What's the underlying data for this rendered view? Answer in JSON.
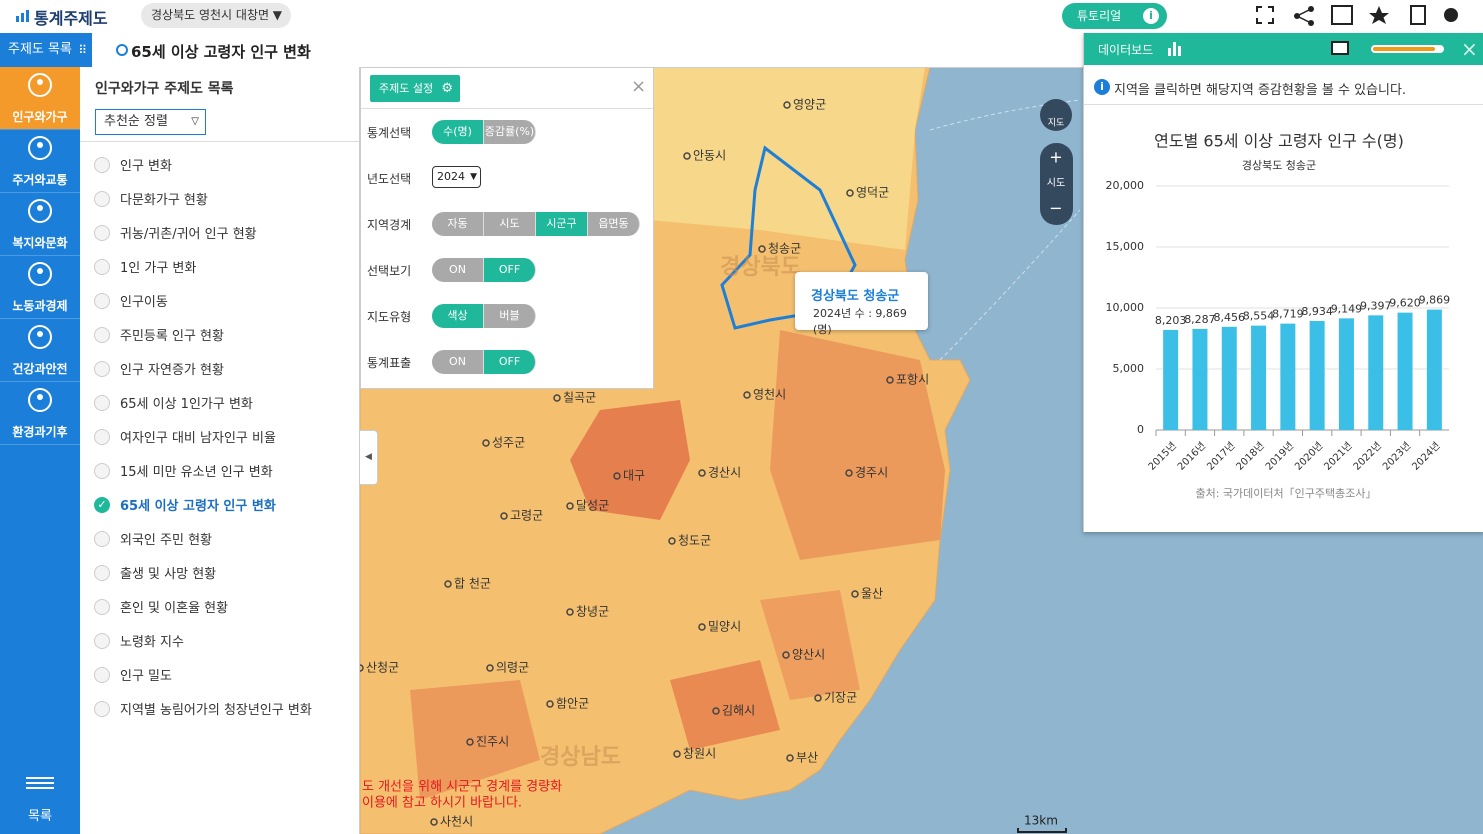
{
  "header": {
    "logo": "통계주제도",
    "location": "경상북도 영천시 대창면",
    "tutorial": "튜토리얼"
  },
  "toolbar": {
    "menu": "주제도 목록",
    "title": "65세 이상 고령자 인구 변화"
  },
  "sidebar": {
    "categories": [
      "인구와가구",
      "주거와교통",
      "복지와문화",
      "노동과경제",
      "건강과안전",
      "환경과기후"
    ],
    "active": 0,
    "menu": "목록"
  },
  "list": {
    "title": "인구와가구 주제도 목록",
    "sort": "추천순 정렬",
    "items": [
      "인구 변화",
      "다문화가구 현황",
      "귀농/귀촌/귀어 인구 현황",
      "1인 가구 변화",
      "인구이동",
      "주민등록 인구 현황",
      "인구 자연증가 현황",
      "65세 이상 1인가구 변화",
      "여자인구 대비 남자인구 비율",
      "15세 미만 유소년 인구 변화",
      "65세 이상 고령자 인구 변화",
      "외국인 주민 현황",
      "출생 및 사망 현황",
      "혼인 및 이혼율 현황",
      "노령화 지수",
      "인구 밀도",
      "지역별 농림어가의 청장년인구 변화"
    ],
    "selected": 10
  },
  "settings": {
    "button": "주제도 설정",
    "rows": [
      {
        "label": "통계선택",
        "options": [
          "수(명)",
          "증감률(%)"
        ],
        "selected": 0
      },
      {
        "label": "년도선택",
        "select": "2024"
      },
      {
        "label": "지역경계",
        "options": [
          "자동",
          "시도",
          "시군구",
          "읍면동"
        ],
        "selected": 2
      },
      {
        "label": "선택보기",
        "options": [
          "ON",
          "OFF"
        ],
        "selected": 1
      },
      {
        "label": "지도유형",
        "options": [
          "색상",
          "버블"
        ],
        "selected": 0
      },
      {
        "label": "통계표출",
        "options": [
          "ON",
          "OFF"
        ],
        "selected": 1
      }
    ]
  },
  "tooltip": {
    "region": "경상북도 청송군",
    "text": "2024년 수 : 9,869 (명)"
  },
  "map": {
    "labels": [
      "영양군",
      "안동시",
      "영덕군",
      "청송군",
      "경상북도",
      "포항시",
      "영천시",
      "칠곡군",
      "성주군",
      "대구",
      "경산시",
      "경주시",
      "달성군",
      "고령군",
      "청도군",
      "합 천군",
      "창녕군",
      "밀양시",
      "울산",
      "의령군",
      "양산시",
      "함안군",
      "김해시",
      "기장군",
      "진주시",
      "창원시",
      "부산",
      "경상남도",
      "산청군",
      "사천시"
    ],
    "notice": [
      "도 개선을 위해 시군구 경계를 경량화",
      "이용에 참고 하시기 바랍니다."
    ],
    "scale": "13km",
    "controls": [
      "지도",
      "시도"
    ]
  },
  "dashboard": {
    "title": "데이터보드",
    "hint": "지역을 클릭하면 해당지역 증감현황을 볼 수 있습니다.",
    "chart": {
      "type": "bar",
      "title": "연도별 65세 이상 고령자 인구 수(명)",
      "subtitle": "경상북도 청송군",
      "categories": [
        "2015년",
        "2016년",
        "2017년",
        "2018년",
        "2019년",
        "2020년",
        "2021년",
        "2022년",
        "2023년",
        "2024년"
      ],
      "values": [
        8203,
        8287,
        8456,
        8554,
        8719,
        8934,
        9149,
        9397,
        9620,
        9869
      ],
      "value_labels": [
        "8,203",
        "8,287",
        "8,456",
        "8,554",
        "8,719",
        "8,934",
        "9,149",
        "9,397",
        "9,620",
        "9,869"
      ],
      "color": "#3bbfe6",
      "ylim": [
        0,
        20000
      ],
      "yticks": [
        0,
        {
          "value": 5000,
          "label": "5,000"
        },
        {
          "value": 10000,
          "label": "10,000"
        },
        {
          "value": 15000,
          "label": "15,000"
        },
        {
          "value": 20000,
          "label": "20,000"
        }
      ],
      "grid": true
    },
    "source": "출처: 국가데이터처「인구주택총조사」"
  }
}
